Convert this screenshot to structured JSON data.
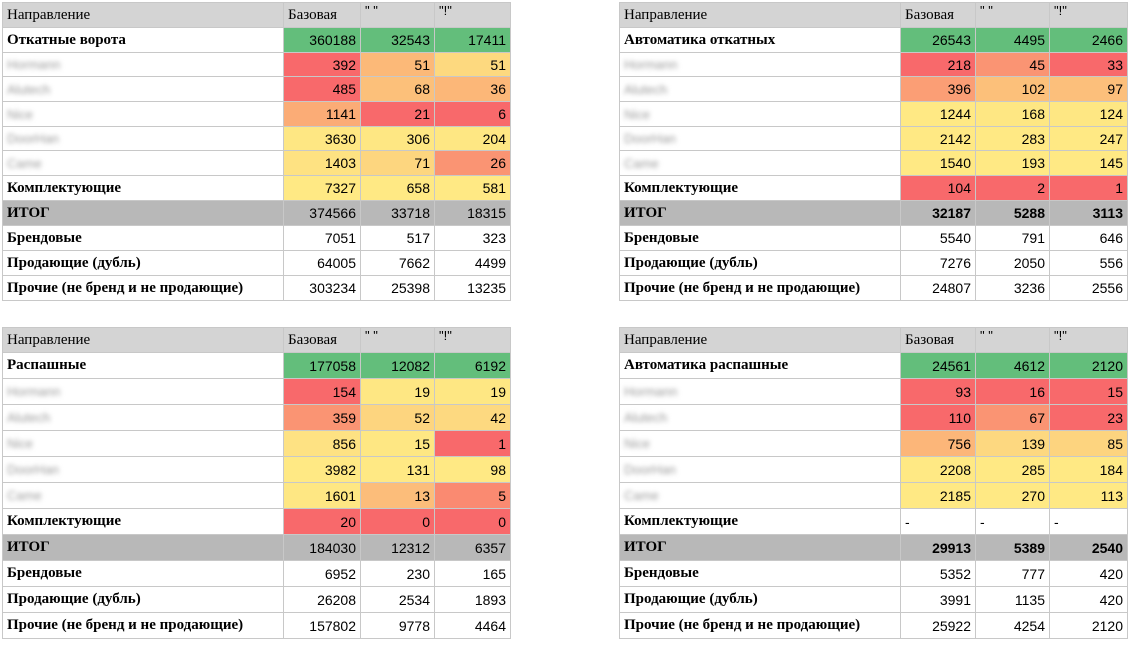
{
  "tables": [
    {
      "header": [
        "Направление",
        "Базовая",
        "\" \"",
        "\"!\""
      ],
      "main": {
        "label": "Откатные ворота",
        "values": [
          "360188",
          "32543",
          "17411"
        ],
        "colors": [
          "#63be7b",
          "#63be7b",
          "#63be7b"
        ]
      },
      "brands": [
        {
          "label": "Hormann",
          "values": [
            "392",
            "51",
            "51"
          ],
          "colors": [
            "#f8696b",
            "#fcb978",
            "#fdd97f"
          ]
        },
        {
          "label": "Alutech",
          "values": [
            "485",
            "68",
            "36"
          ],
          "colors": [
            "#f8696b",
            "#fcc07a",
            "#fcb778"
          ]
        },
        {
          "label": "Nice",
          "values": [
            "1141",
            "21",
            "6"
          ],
          "colors": [
            "#fbac76",
            "#f8696b",
            "#f8696b"
          ]
        },
        {
          "label": "DoorHan",
          "values": [
            "3630",
            "306",
            "204"
          ],
          "colors": [
            "#fee783",
            "#fee783",
            "#fee783"
          ]
        },
        {
          "label": "Came",
          "values": [
            "1403",
            "71",
            "26"
          ],
          "colors": [
            "#fee282",
            "#fdd67f",
            "#fa9473"
          ]
        }
      ],
      "parts": {
        "label": "Комплектующие",
        "values": [
          "7327",
          "658",
          "581"
        ],
        "colors": [
          "#ffe984",
          "#ffe984",
          "#ffe984"
        ]
      },
      "total": {
        "label": "ИТОГ",
        "values": [
          "374566",
          "33718",
          "18315"
        ]
      },
      "rows": [
        {
          "label": "Брендовые",
          "values": [
            "7051",
            "517",
            "323"
          ]
        },
        {
          "label": "Продающие (дубль)",
          "values": [
            "64005",
            "7662",
            "4499"
          ]
        },
        {
          "label": "Прочие (не бренд и не продающие)",
          "values": [
            "303234",
            "25398",
            "13235"
          ]
        }
      ]
    },
    {
      "header": [
        "Направление",
        "Базовая",
        "\" \"",
        "\"!\""
      ],
      "main": {
        "label": "Автоматика откатных",
        "values": [
          "26543",
          "4495",
          "2466"
        ],
        "colors": [
          "#63be7b",
          "#63be7b",
          "#63be7b"
        ]
      },
      "brands": [
        {
          "label": "Hormann",
          "values": [
            "218",
            "45",
            "33"
          ],
          "colors": [
            "#f8696b",
            "#fa9473",
            "#f8696b"
          ]
        },
        {
          "label": "Alutech",
          "values": [
            "396",
            "102",
            "97"
          ],
          "colors": [
            "#fb9e75",
            "#fcc07a",
            "#fcbf7b"
          ]
        },
        {
          "label": "Nice",
          "values": [
            "1244",
            "168",
            "124"
          ],
          "colors": [
            "#ffe984",
            "#fee783",
            "#fee783"
          ]
        },
        {
          "label": "DoorHan",
          "values": [
            "2142",
            "283",
            "247"
          ],
          "colors": [
            "#ffe984",
            "#ffe984",
            "#ffe984"
          ]
        },
        {
          "label": "Came",
          "values": [
            "1540",
            "193",
            "145"
          ],
          "colors": [
            "#ffe984",
            "#ffe984",
            "#ffe984"
          ]
        }
      ],
      "parts": {
        "label": "Комплектующие",
        "values": [
          "104",
          "2",
          "1"
        ],
        "colors": [
          "#f8696b",
          "#f8696b",
          "#f8696b"
        ]
      },
      "total": {
        "label": "ИТОГ",
        "values": [
          "32187",
          "5288",
          "3113"
        ]
      },
      "rows": [
        {
          "label": "Брендовые",
          "values": [
            "5540",
            "791",
            "646"
          ]
        },
        {
          "label": "Продающие (дубль)",
          "values": [
            "7276",
            "2050",
            "556"
          ]
        },
        {
          "label": "Прочие (не бренд и не продающие)",
          "values": [
            "24807",
            "3236",
            "2556"
          ]
        }
      ]
    },
    {
      "header": [
        "Направление",
        "Базовая",
        "\" \"",
        "\"!\""
      ],
      "main": {
        "label": "Распашные",
        "values": [
          "177058",
          "12082",
          "6192"
        ],
        "colors": [
          "#63be7b",
          "#63be7b",
          "#63be7b"
        ]
      },
      "brands": [
        {
          "label": "Hormann",
          "values": [
            "154",
            "19",
            "19"
          ],
          "colors": [
            "#f8696b",
            "#fee783",
            "#fee783"
          ]
        },
        {
          "label": "Alutech",
          "values": [
            "359",
            "52",
            "42"
          ],
          "colors": [
            "#fa9473",
            "#fdd57f",
            "#fdd980"
          ]
        },
        {
          "label": "Nice",
          "values": [
            "856",
            "15",
            "1"
          ],
          "colors": [
            "#fee283",
            "#fee783",
            "#f8696b"
          ]
        },
        {
          "label": "DoorHan",
          "values": [
            "3982",
            "131",
            "98"
          ],
          "colors": [
            "#ffe984",
            "#ffe984",
            "#ffe984"
          ]
        },
        {
          "label": "Came",
          "values": [
            "1601",
            "13",
            "5"
          ],
          "colors": [
            "#fee783",
            "#fcbd7a",
            "#fa8a71"
          ]
        }
      ],
      "parts": {
        "label": "Комплектующие",
        "values": [
          "20",
          "0",
          "0"
        ],
        "colors": [
          "#f8696b",
          "#f8696b",
          "#f8696b"
        ]
      },
      "total": {
        "label": "ИТОГ",
        "values": [
          "184030",
          "12312",
          "6357"
        ]
      },
      "rows": [
        {
          "label": "Брендовые",
          "values": [
            "6952",
            "230",
            "165"
          ]
        },
        {
          "label": "Продающие (дубль)",
          "values": [
            "26208",
            "2534",
            "1893"
          ]
        },
        {
          "label": "Прочие (не бренд и не продающие)",
          "values": [
            "157802",
            "9778",
            "4464"
          ]
        }
      ]
    },
    {
      "header": [
        "Направление",
        "Базовая",
        "\" \"",
        "\"!\""
      ],
      "main": {
        "label": "Автоматика распашные",
        "values": [
          "24561",
          "4612",
          "2120"
        ],
        "colors": [
          "#63be7b",
          "#63be7b",
          "#63be7b"
        ]
      },
      "brands": [
        {
          "label": "Hormann",
          "values": [
            "93",
            "16",
            "15"
          ],
          "colors": [
            "#f8696b",
            "#f8696b",
            "#f8696b"
          ]
        },
        {
          "label": "Alutech",
          "values": [
            "110",
            "67",
            "23"
          ],
          "colors": [
            "#f8696b",
            "#fa9473",
            "#f8696b"
          ]
        },
        {
          "label": "Nice",
          "values": [
            "756",
            "139",
            "85"
          ],
          "colors": [
            "#fcb679",
            "#fdd880",
            "#fdd47f"
          ]
        },
        {
          "label": "DoorHan",
          "values": [
            "2208",
            "285",
            "184"
          ],
          "colors": [
            "#ffe984",
            "#ffe984",
            "#ffe984"
          ]
        },
        {
          "label": "Came",
          "values": [
            "2185",
            "270",
            "113"
          ],
          "colors": [
            "#ffe984",
            "#ffe984",
            "#ffe984"
          ]
        }
      ],
      "parts": {
        "label": "Комплектующие",
        "values": [
          "-",
          "-",
          "-"
        ],
        "colors": [
          "#ffffff",
          "#ffffff",
          "#ffffff"
        ]
      },
      "total": {
        "label": "ИТОГ",
        "values": [
          "29913",
          "5389",
          "2540"
        ]
      },
      "rows": [
        {
          "label": "Брендовые",
          "values": [
            "5352",
            "777",
            "420"
          ]
        },
        {
          "label": "Продающие (дубль)",
          "values": [
            "3991",
            "1135",
            "420"
          ]
        },
        {
          "label": "Прочие (не бренд и не продающие)",
          "values": [
            "25922",
            "4254",
            "2120"
          ]
        }
      ]
    }
  ]
}
